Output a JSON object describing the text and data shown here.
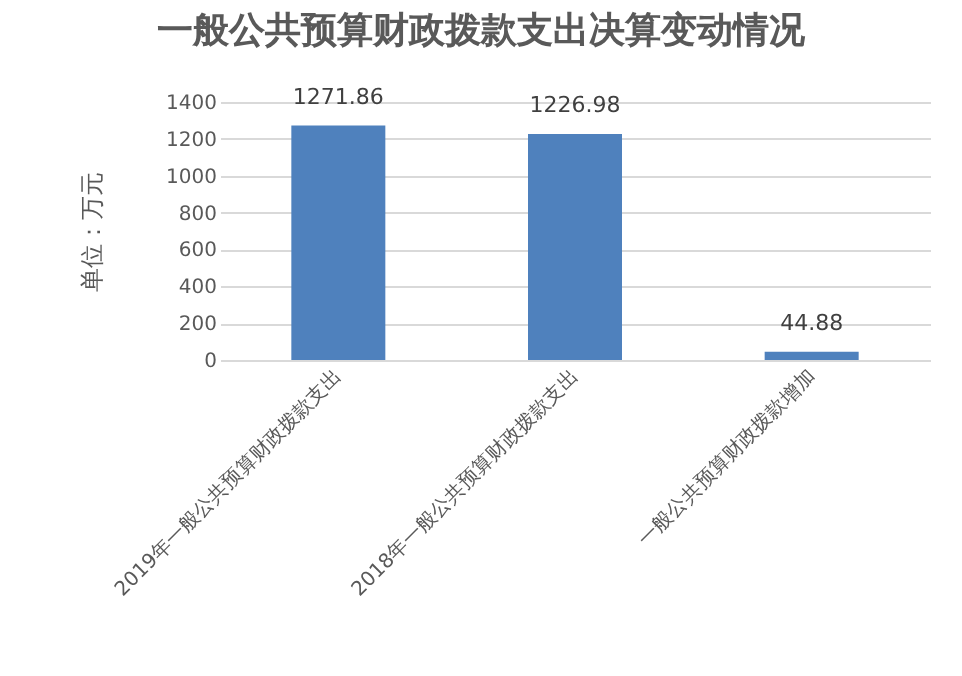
{
  "chart_data": {
    "type": "bar",
    "title": "一般公共预算财政拨款支出决算变动情况",
    "ylabel": "单位：万元",
    "categories": [
      "2019年一般公共预算财政拨款支出",
      "2018年一般公共预算财政拨款支出",
      "一般公共预算财政拨款增加"
    ],
    "values": [
      1271.86,
      1226.98,
      44.88
    ],
    "color": "#4f81bd",
    "ylim": [
      0,
      1400
    ],
    "yticks": [
      0,
      200,
      400,
      600,
      800,
      1000,
      1200,
      1400
    ],
    "grid": "y",
    "data_labels": true
  }
}
